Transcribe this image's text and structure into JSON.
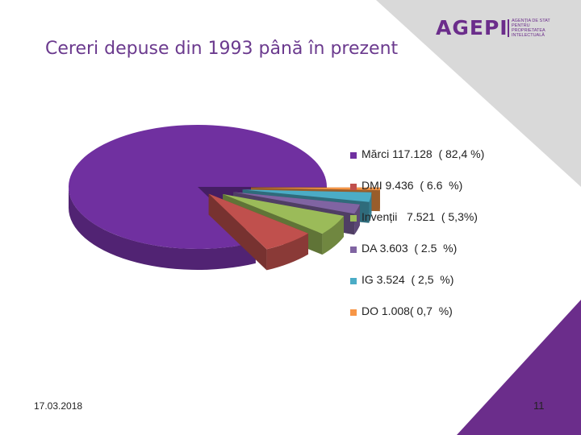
{
  "slide": {
    "title": "Cereri depuse din 1993 până în prezent",
    "logo": {
      "word": "AGEPI",
      "subtitle": [
        "AGENȚIA DE STAT",
        "PENTRU",
        "PROPRIETATEA",
        "INTELECTUALĂ"
      ]
    },
    "date": "17.03.2018",
    "page_number": "11",
    "colors": {
      "accent": "#6b2d8b",
      "corner_gray": "#d9d9d9",
      "corner_purple": "#6b2d8b"
    }
  },
  "chart_data": {
    "type": "pie",
    "style": "3d-exploded",
    "legend_position": "right",
    "series": [
      {
        "label": "Mărci 117.128  ( 82,4 %)",
        "value": 82.4,
        "color": "#7030a0"
      },
      {
        "label": "DMI 9.436  ( 6.6  %)",
        "value": 6.6,
        "color": "#c0504d"
      },
      {
        "label": "Invenții   7.521  ( 5,3%)",
        "value": 5.3,
        "color": "#9bbb59"
      },
      {
        "label": "DA 3.603  ( 2.5  %)",
        "value": 2.5,
        "color": "#8064a2"
      },
      {
        "label": "IG 3.524  ( 2,5  %)",
        "value": 2.5,
        "color": "#4bacc6"
      },
      {
        "label": "DO 1.008( 0,7  %)",
        "value": 0.7,
        "color": "#f79646"
      }
    ]
  }
}
